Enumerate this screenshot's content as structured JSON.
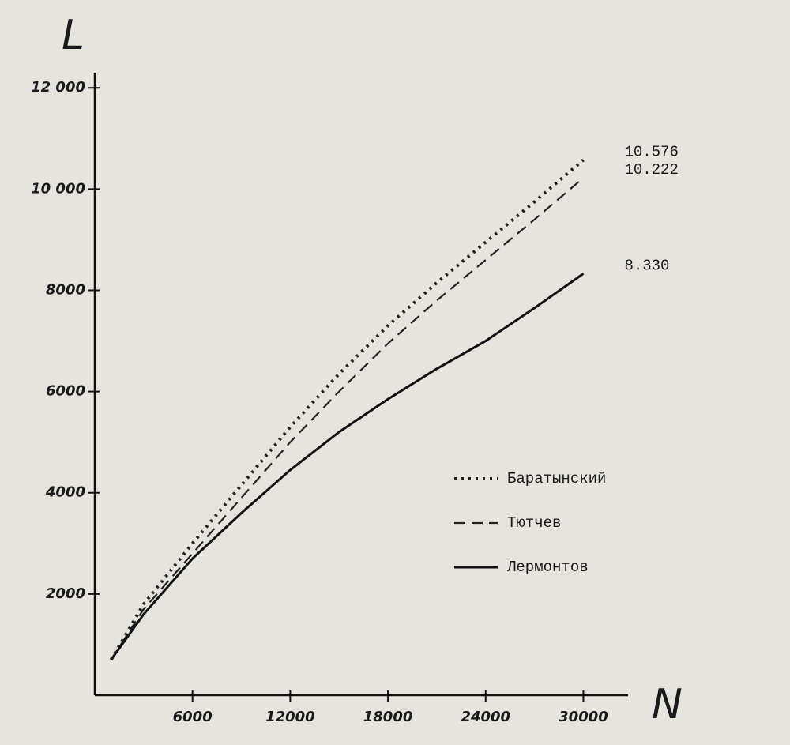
{
  "chart_data": {
    "type": "line",
    "x_label": "N",
    "y_label": "L",
    "x": [
      1000,
      3000,
      6000,
      9000,
      12000,
      15000,
      18000,
      21000,
      24000,
      27000,
      30000
    ],
    "series": [
      {
        "name": "Баратынский",
        "color": "#222222",
        "style": "dotted",
        "values": [
          700,
          1800,
          3000,
          4150,
          5300,
          6350,
          7300,
          8150,
          8950,
          9750,
          10576
        ],
        "value_labels": [
          null,
          null,
          null,
          null,
          null,
          null,
          null,
          null,
          null,
          null,
          "10.576"
        ]
      },
      {
        "name": "Тютчев",
        "color": "#222222",
        "style": "dashed",
        "values": [
          700,
          1700,
          2800,
          3900,
          5000,
          6000,
          6950,
          7800,
          8600,
          9400,
          10222
        ],
        "value_labels": [
          null,
          null,
          null,
          null,
          null,
          null,
          null,
          null,
          null,
          null,
          "10.222"
        ]
      },
      {
        "name": "Лермонтов",
        "color": "#111111",
        "style": "solid",
        "values": [
          700,
          1600,
          2700,
          3600,
          4450,
          5200,
          5850,
          6450,
          7000,
          7650,
          8330
        ],
        "value_labels": [
          null,
          null,
          null,
          null,
          null,
          null,
          null,
          null,
          null,
          null,
          "8.330"
        ]
      }
    ],
    "xlim": [
      0,
      32500
    ],
    "ylim": [
      0,
      12300
    ],
    "xticks": [
      6000,
      12000,
      18000,
      24000,
      30000
    ],
    "yticks": [
      2000,
      4000,
      6000,
      8000,
      {
        "value": 10000,
        "label": "10 000"
      },
      {
        "value": 12000,
        "label": "12 000"
      }
    ],
    "grid": false,
    "legend": "right"
  }
}
